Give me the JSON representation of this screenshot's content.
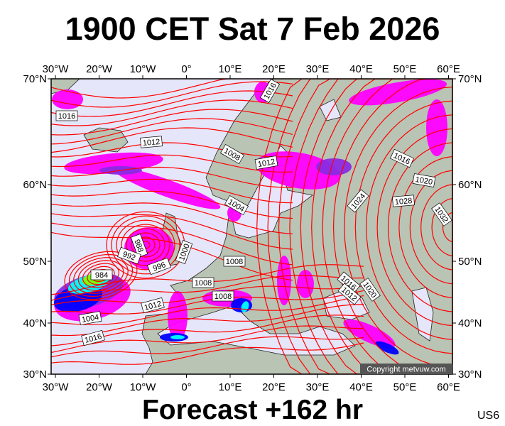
{
  "header": {
    "title": "1900 CET Sat 7 Feb 2026"
  },
  "footer": {
    "forecast": "Forecast +162 hr",
    "model_code": "US6"
  },
  "map": {
    "lon_labels": [
      "30°W",
      "20°W",
      "10°W",
      "0°",
      "10°E",
      "20°E",
      "30°E",
      "40°E",
      "50°E",
      "60°E"
    ],
    "lat_labels": [
      "70°N",
      "60°N",
      "50°N",
      "40°N",
      "30°N"
    ],
    "copyright": "Copyright metvuw.com",
    "isobar_labels": [
      "1016",
      "1012",
      "1008",
      "1012",
      "1016",
      "1004",
      "988",
      "992",
      "996",
      "1000",
      "984",
      "1008",
      "1008",
      "1008",
      "1012",
      "1004",
      "1016",
      "1016",
      "1020",
      "1024",
      "1028",
      "1032",
      "1016",
      "1012",
      "1020"
    ],
    "colors": {
      "sea": "#e6e6fa",
      "land": "#b9c4b4",
      "isobar": "#ff0000",
      "precip_light": "#ff00ff",
      "precip_medium": "#8a2be2",
      "precip_heavy": "#0000ff",
      "precip_very_heavy": "#00ffff",
      "precip_extreme": "#7fff00",
      "precip_max": "#ffff00"
    }
  }
}
